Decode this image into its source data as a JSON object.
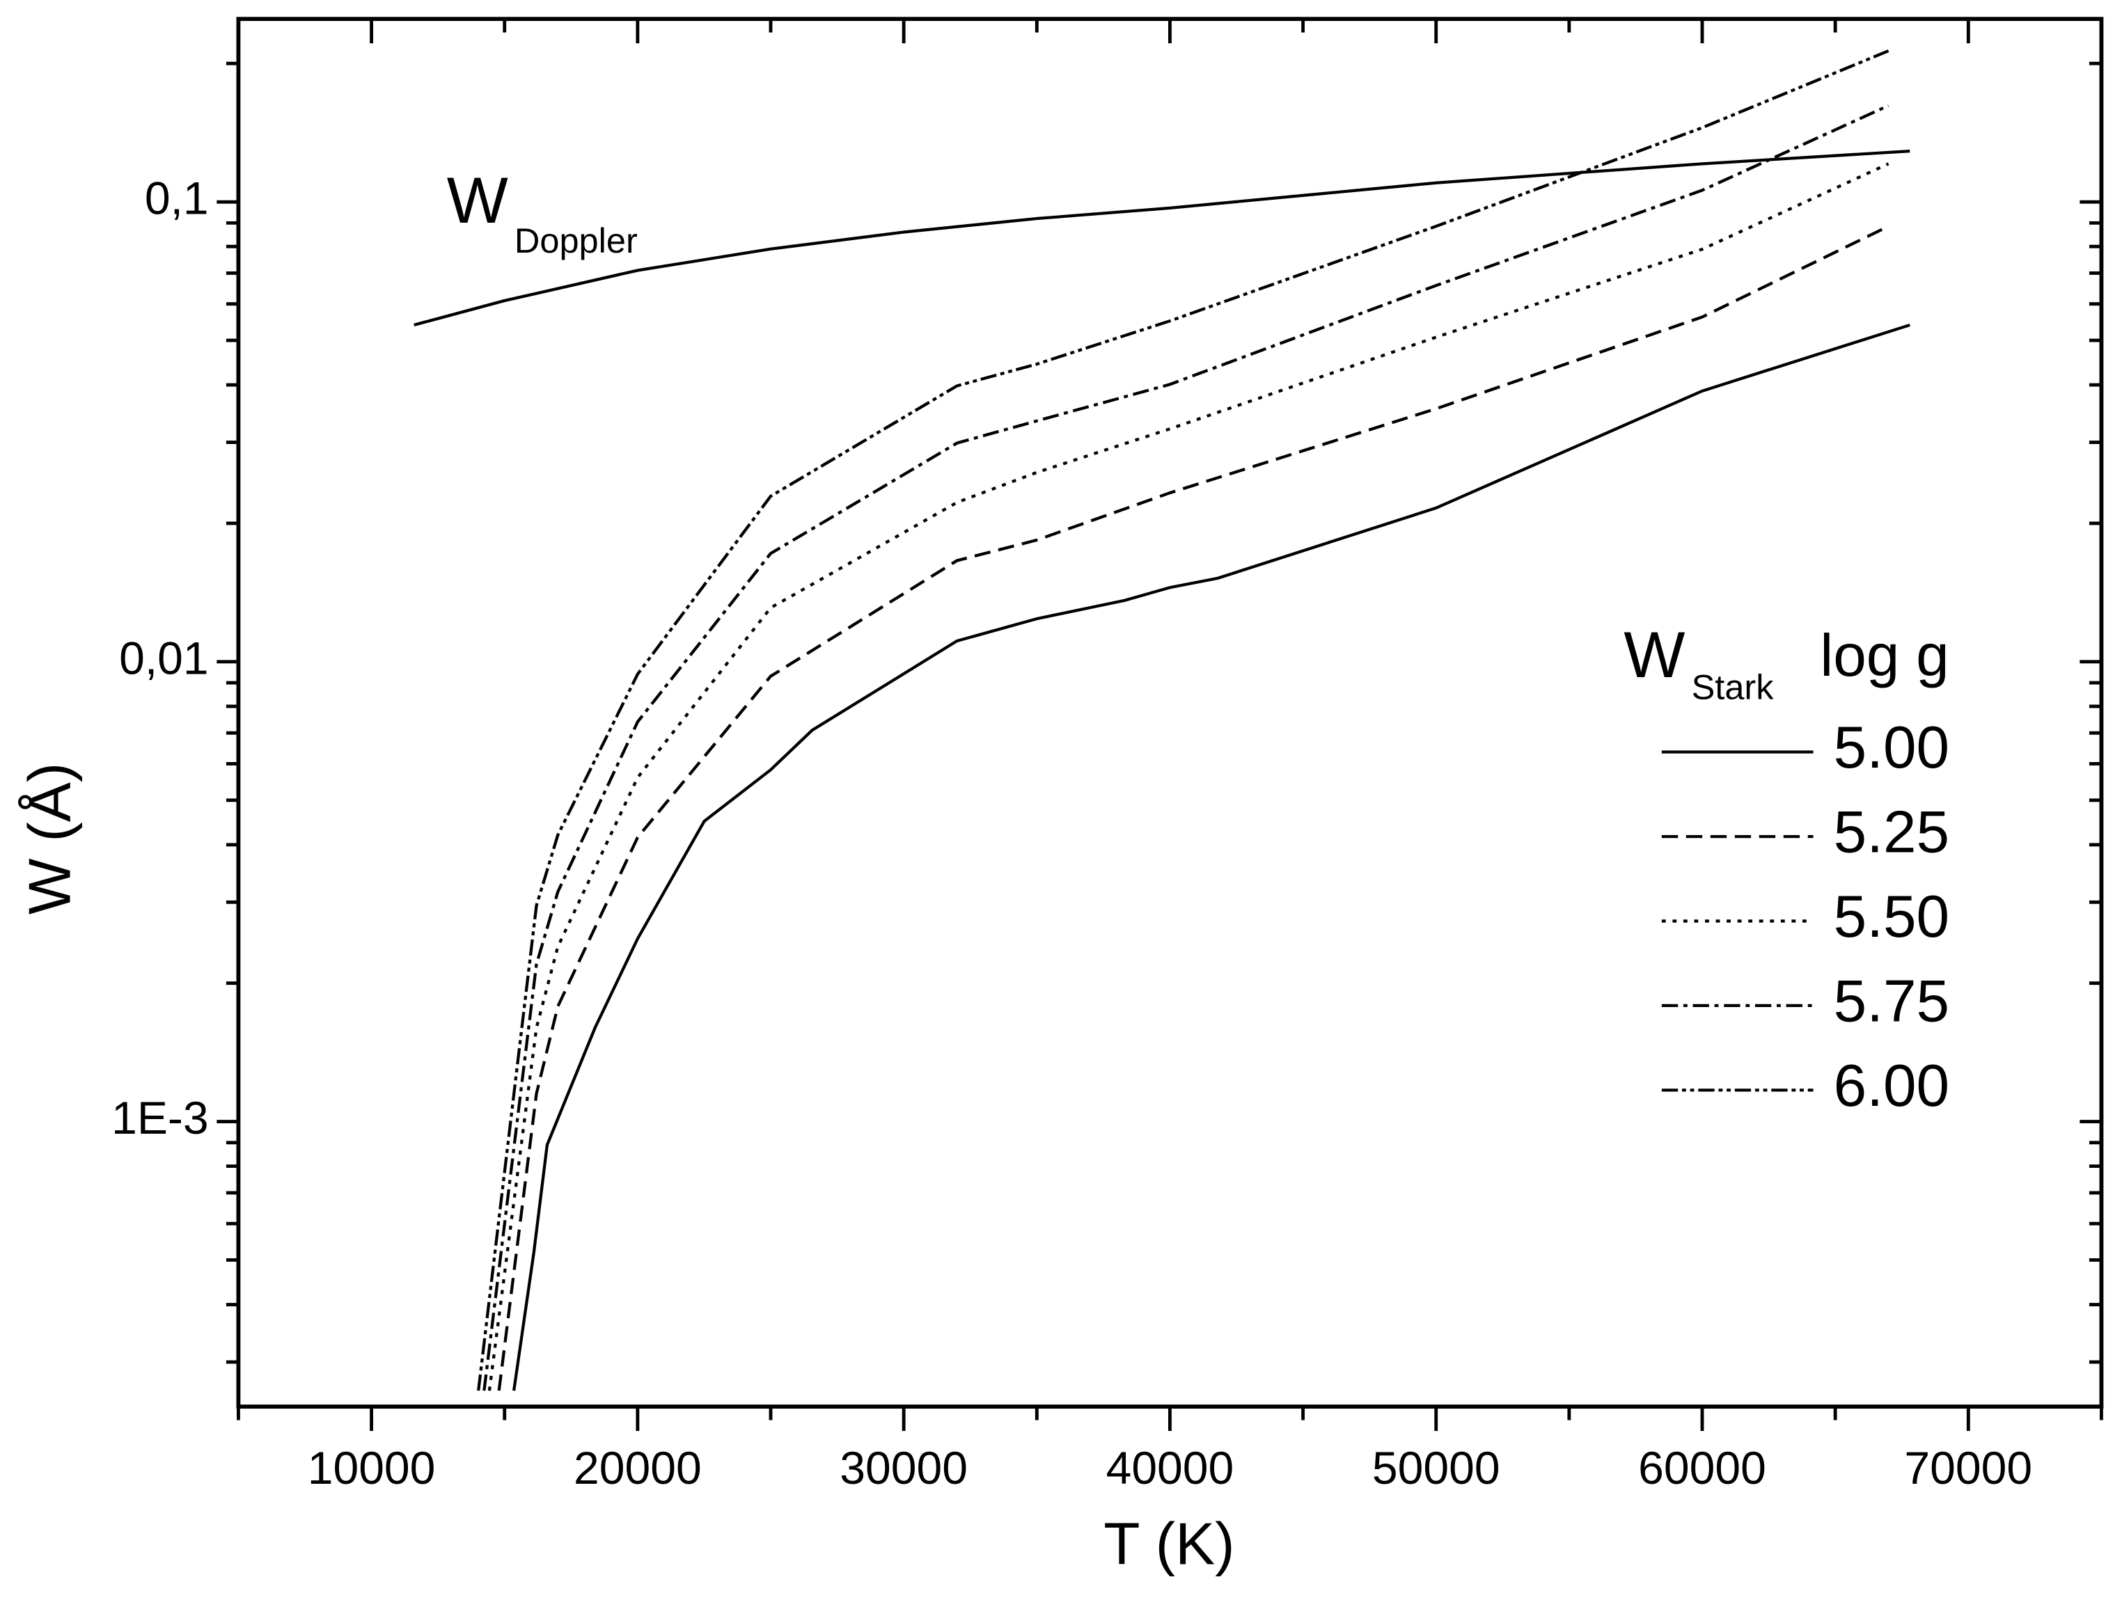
{
  "chart_data": {
    "type": "line",
    "x_label": "T (K)",
    "y_label": "W (Å)",
    "xlim": [
      5000,
      75000
    ],
    "ylim": [
      0.00024,
      0.25
    ],
    "log_y": true,
    "xticks": [
      10000,
      20000,
      30000,
      40000,
      50000,
      60000,
      70000
    ],
    "yticks": [
      {
        "value": 0.001,
        "label": "1E-3"
      },
      {
        "value": 0.01,
        "label": "0,01"
      },
      {
        "value": 0.1,
        "label": "0,1"
      }
    ],
    "doppler": {
      "label": "W",
      "subscript": "Doppler",
      "color": "#000000",
      "x": [
        11600,
        15000,
        20000,
        25000,
        30000,
        35000,
        40000,
        50000,
        60000,
        67800
      ],
      "values": [
        0.054,
        0.061,
        0.071,
        0.079,
        0.086,
        0.092,
        0.097,
        0.11,
        0.121,
        0.129
      ]
    },
    "legend_title": {
      "label": "W",
      "subscript": "Stark",
      "param": "log g"
    },
    "series": [
      {
        "name": "5.00",
        "color": "#000000",
        "dash": "none",
        "x": [
          15350,
          16100,
          16600,
          18400,
          20000,
          22500,
          25000,
          26560,
          32000,
          35000,
          38300,
          40000,
          41800,
          50000,
          60000,
          67800
        ],
        "values": [
          0.00026,
          0.00052,
          0.00089,
          0.0016,
          0.0025,
          0.0045,
          0.00582,
          0.0071,
          0.0111,
          0.0124,
          0.0136,
          0.0145,
          0.0152,
          0.0216,
          0.0388,
          0.054
        ]
      },
      {
        "name": "5.25",
        "color": "#000000",
        "dash": "12,6",
        "x": [
          14790,
          16200,
          17000,
          20000,
          25000,
          32000,
          35000,
          40000,
          50000,
          60000,
          67000
        ],
        "values": [
          0.00026,
          0.00115,
          0.00178,
          0.00415,
          0.0093,
          0.0166,
          0.0184,
          0.0233,
          0.0355,
          0.0562,
          0.0885
        ]
      },
      {
        "name": "5.50",
        "color": "#000000",
        "dash": "3,5",
        "x": [
          14430,
          16200,
          17000,
          20000,
          25000,
          32000,
          35000,
          40000,
          50000,
          60000,
          67000
        ],
        "values": [
          0.00026,
          0.0016,
          0.0024,
          0.0056,
          0.0131,
          0.0222,
          0.0258,
          0.0321,
          0.0508,
          0.0789,
          0.121
        ]
      },
      {
        "name": "5.75",
        "color": "#000000",
        "dash": "12,4,3,4",
        "x": [
          14230,
          16200,
          17000,
          20000,
          25000,
          32000,
          35000,
          40000,
          50000,
          60000,
          67000
        ],
        "values": [
          0.00026,
          0.0022,
          0.00316,
          0.0074,
          0.0172,
          0.0299,
          0.0334,
          0.0401,
          0.0658,
          0.106,
          0.162
        ]
      },
      {
        "name": "6.00",
        "color": "#000000",
        "dash": "12,3,3,3,3,3",
        "x": [
          14020,
          16200,
          17000,
          20000,
          25000,
          32000,
          35000,
          40000,
          50000,
          60000,
          67000
        ],
        "values": [
          0.00026,
          0.00295,
          0.0042,
          0.0094,
          0.0229,
          0.0398,
          0.0444,
          0.0551,
          0.0885,
          0.145,
          0.213
        ]
      }
    ]
  }
}
